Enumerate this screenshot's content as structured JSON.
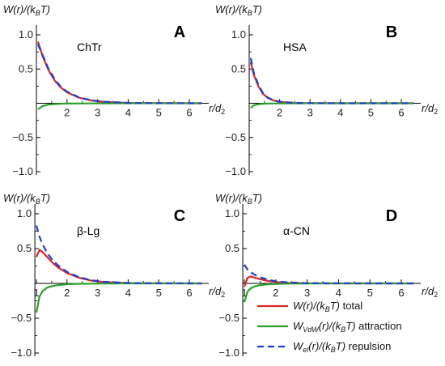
{
  "chart_data": [
    {
      "type": "line",
      "panel_label": "A",
      "title": "ChTr",
      "ylabel": "W(r)/(k_B T)",
      "xlabel": "r/d_2",
      "xlim": [
        0.9,
        6.5
      ],
      "ylim": [
        -1.0,
        1.0
      ],
      "xticks": [
        2,
        3,
        4,
        5,
        6
      ],
      "yticks": [
        -1.0,
        -0.5,
        0.5,
        1.0
      ],
      "x": [
        1.05,
        1.2,
        1.4,
        1.6,
        1.8,
        2.0,
        2.4,
        2.8,
        3.2,
        4.0,
        5.0,
        6.4
      ],
      "series": [
        {
          "name": "total",
          "color": "#d62728",
          "style": "solid",
          "values": [
            0.9,
            0.69,
            0.48,
            0.33,
            0.23,
            0.16,
            0.08,
            0.04,
            0.02,
            0.005,
            0.001,
            0.0
          ]
        },
        {
          "name": "attraction",
          "color": "#2ca02c",
          "style": "solid",
          "values": [
            -0.09,
            -0.04,
            -0.02,
            -0.012,
            -0.008,
            -0.005,
            -0.003,
            -0.002,
            -0.001,
            0.0,
            0.0,
            0.0
          ]
        },
        {
          "name": "repulsion",
          "color": "#1f3fcc",
          "style": "dashed",
          "values": [
            0.86,
            0.71,
            0.5,
            0.35,
            0.24,
            0.17,
            0.085,
            0.043,
            0.022,
            0.005,
            0.001,
            0.0
          ]
        }
      ]
    },
    {
      "type": "line",
      "panel_label": "B",
      "title": "HSA",
      "ylabel": "W(r)/(k_B T)",
      "xlabel": "r/d_2",
      "xlim": [
        0.9,
        6.5
      ],
      "ylim": [
        -1.0,
        1.0
      ],
      "xticks": [
        2,
        3,
        4,
        5,
        6
      ],
      "yticks": [
        -1.0,
        -0.5,
        0.5,
        1.0
      ],
      "x": [
        1.05,
        1.15,
        1.3,
        1.45,
        1.6,
        1.8,
        2.0,
        2.5,
        3.0,
        4.0,
        5.0,
        6.4
      ],
      "series": [
        {
          "name": "total",
          "color": "#d62728",
          "style": "solid",
          "values": [
            0.6,
            0.42,
            0.25,
            0.14,
            0.08,
            0.04,
            0.02,
            0.004,
            0.001,
            0.0,
            0.0,
            0.0
          ]
        },
        {
          "name": "attraction",
          "color": "#2ca02c",
          "style": "solid",
          "values": [
            -0.07,
            -0.03,
            -0.015,
            -0.008,
            -0.005,
            -0.003,
            -0.002,
            -0.001,
            0.0,
            0.0,
            0.0,
            0.0
          ]
        },
        {
          "name": "repulsion",
          "color": "#1f3fcc",
          "style": "dashed",
          "values": [
            0.66,
            0.45,
            0.27,
            0.15,
            0.085,
            0.043,
            0.022,
            0.005,
            0.001,
            0.0,
            0.0,
            0.0
          ]
        }
      ]
    },
    {
      "type": "line",
      "panel_label": "C",
      "title": "β-Lg",
      "ylabel": "W(r)/(k_B T)",
      "xlabel": "r/d_2",
      "xlim": [
        0.9,
        6.5
      ],
      "ylim": [
        -1.0,
        1.0
      ],
      "xticks": [
        1,
        2,
        3,
        4,
        5,
        6
      ],
      "yticks": [
        -1.0,
        -0.5,
        0.5,
        1.0
      ],
      "x": [
        1.0,
        1.1,
        1.2,
        1.35,
        1.5,
        1.7,
        2.0,
        2.4,
        2.8,
        3.2,
        4.0,
        5.0,
        6.4
      ],
      "series": [
        {
          "name": "total",
          "color": "#d62728",
          "style": "solid",
          "values": [
            0.38,
            0.48,
            0.45,
            0.38,
            0.31,
            0.23,
            0.15,
            0.08,
            0.04,
            0.02,
            0.005,
            0.001,
            0.0
          ]
        },
        {
          "name": "attraction",
          "color": "#2ca02c",
          "style": "solid",
          "values": [
            -0.42,
            -0.19,
            -0.11,
            -0.06,
            -0.04,
            -0.025,
            -0.012,
            -0.006,
            -0.003,
            -0.002,
            0.0,
            0.0,
            0.0
          ]
        },
        {
          "name": "repulsion",
          "color": "#1f3fcc",
          "style": "dashed",
          "values": [
            0.83,
            0.67,
            0.56,
            0.44,
            0.35,
            0.26,
            0.165,
            0.088,
            0.045,
            0.023,
            0.006,
            0.001,
            0.0
          ]
        }
      ]
    },
    {
      "type": "line",
      "panel_label": "D",
      "title": "α-CN",
      "ylabel": "W(r)/(k_B T)",
      "xlabel": "r/d_2",
      "xlim": [
        0.9,
        6.5
      ],
      "ylim": [
        -1.0,
        1.0
      ],
      "xticks": [
        1,
        2,
        3,
        4,
        5,
        6
      ],
      "yticks": [
        -1.0,
        -0.5,
        0.5,
        1.0
      ],
      "x": [
        1.0,
        1.1,
        1.2,
        1.35,
        1.5,
        1.7,
        2.0,
        2.4,
        3.0,
        4.0,
        5.0,
        6.4
      ],
      "series": [
        {
          "name": "total",
          "color": "#d62728",
          "style": "solid",
          "values": [
            -0.05,
            0.08,
            0.1,
            0.08,
            0.06,
            0.04,
            0.02,
            0.008,
            0.002,
            0.0,
            0.0,
            0.0
          ]
        },
        {
          "name": "attraction",
          "color": "#2ca02c",
          "style": "solid",
          "values": [
            -0.27,
            -0.12,
            -0.07,
            -0.04,
            -0.025,
            -0.015,
            -0.008,
            -0.004,
            -0.001,
            0.0,
            0.0,
            0.0
          ]
        },
        {
          "name": "repulsion",
          "color": "#1f3fcc",
          "style": "dashed",
          "values": [
            0.27,
            0.2,
            0.16,
            0.12,
            0.09,
            0.06,
            0.03,
            0.014,
            0.004,
            0.001,
            0.0,
            0.0
          ]
        }
      ]
    }
  ],
  "legend": {
    "placement": "bottom-right",
    "items": [
      {
        "key": "total",
        "color": "#d62728",
        "style": "solid",
        "italic": "W(r)/(k",
        "sub1": "B",
        "italic2": "T)",
        "rest": " total"
      },
      {
        "key": "attraction",
        "color": "#2ca02c",
        "style": "solid",
        "italic": "W",
        "sub0": "VdW",
        "italic1": "(r)/(k",
        "sub1": "B",
        "italic2": "T)",
        "rest": " attraction"
      },
      {
        "key": "repulsion",
        "color": "#1f3fcc",
        "style": "dashed",
        "italic": "W",
        "sub0": "el",
        "italic1": "(r)/(k",
        "sub1": "B",
        "italic2": "T)",
        "rest": " repulsion"
      }
    ]
  }
}
